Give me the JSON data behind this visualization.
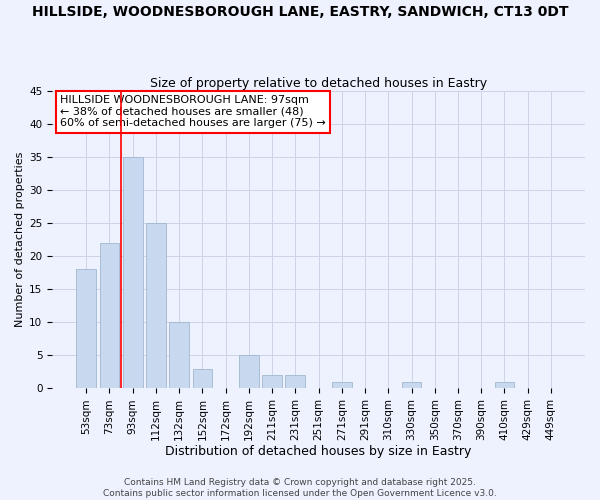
{
  "title1": "HILLSIDE, WOODNESBOROUGH LANE, EASTRY, SANDWICH, CT13 0DT",
  "title2": "Size of property relative to detached houses in Eastry",
  "xlabel": "Distribution of detached houses by size in Eastry",
  "ylabel": "Number of detached properties",
  "categories": [
    "53sqm",
    "73sqm",
    "93sqm",
    "112sqm",
    "132sqm",
    "152sqm",
    "172sqm",
    "192sqm",
    "211sqm",
    "231sqm",
    "251sqm",
    "271sqm",
    "291sqm",
    "310sqm",
    "330sqm",
    "350sqm",
    "370sqm",
    "390sqm",
    "410sqm",
    "429sqm",
    "449sqm"
  ],
  "values": [
    18,
    22,
    35,
    25,
    10,
    3,
    0,
    5,
    2,
    2,
    0,
    1,
    0,
    0,
    1,
    0,
    0,
    0,
    1,
    0,
    0
  ],
  "bar_color": "#c8d8ee",
  "bar_edge_color": "#a0b8d0",
  "red_line_x": 1.5,
  "ylim": [
    0,
    45
  ],
  "yticks": [
    0,
    5,
    10,
    15,
    20,
    25,
    30,
    35,
    40,
    45
  ],
  "annotation_line1": "HILLSIDE WOODNESBOROUGH LANE: 97sqm",
  "annotation_line2": "← 38% of detached houses are smaller (48)",
  "annotation_line3": "60% of semi-detached houses are larger (75) →",
  "footer1": "Contains HM Land Registry data © Crown copyright and database right 2025.",
  "footer2": "Contains public sector information licensed under the Open Government Licence v3.0.",
  "background_color": "#eef2ff",
  "grid_color": "#ccd4e8",
  "title1_fontsize": 10,
  "title2_fontsize": 9,
  "xlabel_fontsize": 9,
  "ylabel_fontsize": 8,
  "annotation_fontsize": 8,
  "tick_fontsize": 7.5,
  "footer_fontsize": 6.5
}
